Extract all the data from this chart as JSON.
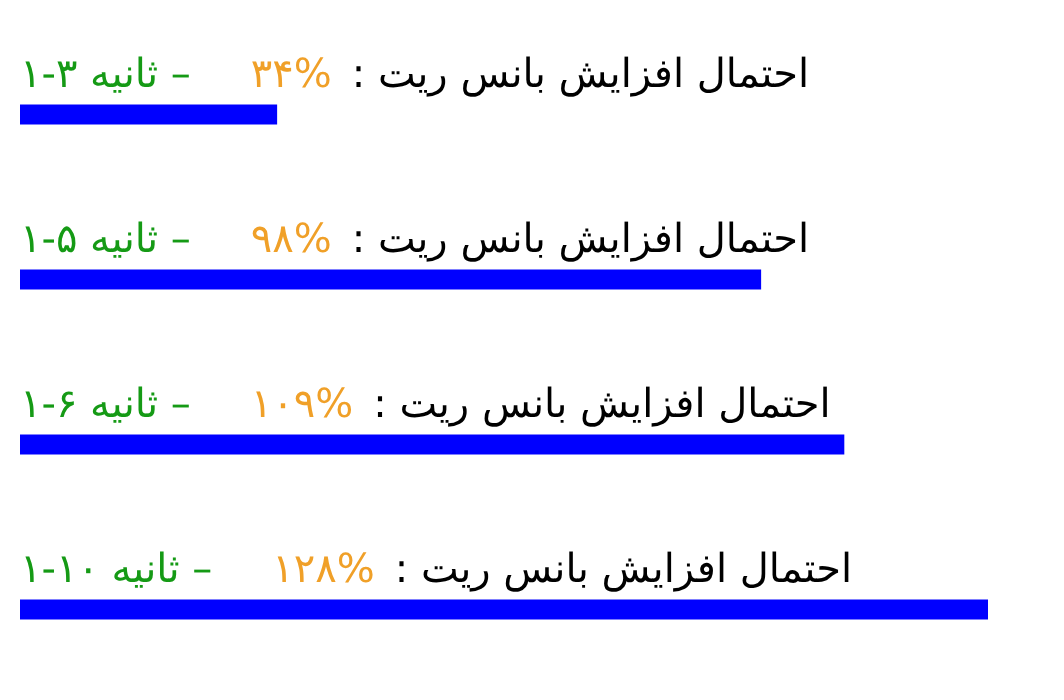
{
  "chart_data": {
    "type": "bar",
    "orientation": "horizontal",
    "categories": [
      "– ثانیه ۱-۳",
      "– ثانیه ۱-۵",
      "– ثانیه ۱-۶",
      "– ثانیه ۱-۱۰"
    ],
    "values": [
      34,
      98,
      109,
      128
    ],
    "value_labels": [
      "۳۴%",
      "۹۸%",
      "۱۰۹%",
      "۱۲۸%"
    ],
    "color": "#0000ff",
    "annotations": [
      "احتمال افزایش بانس ریت :",
      "احتمال افزایش بانس ریت :",
      "احتمال افزایش بانس ریت :",
      "احتمال افزایش بانس ریت :"
    ]
  }
}
